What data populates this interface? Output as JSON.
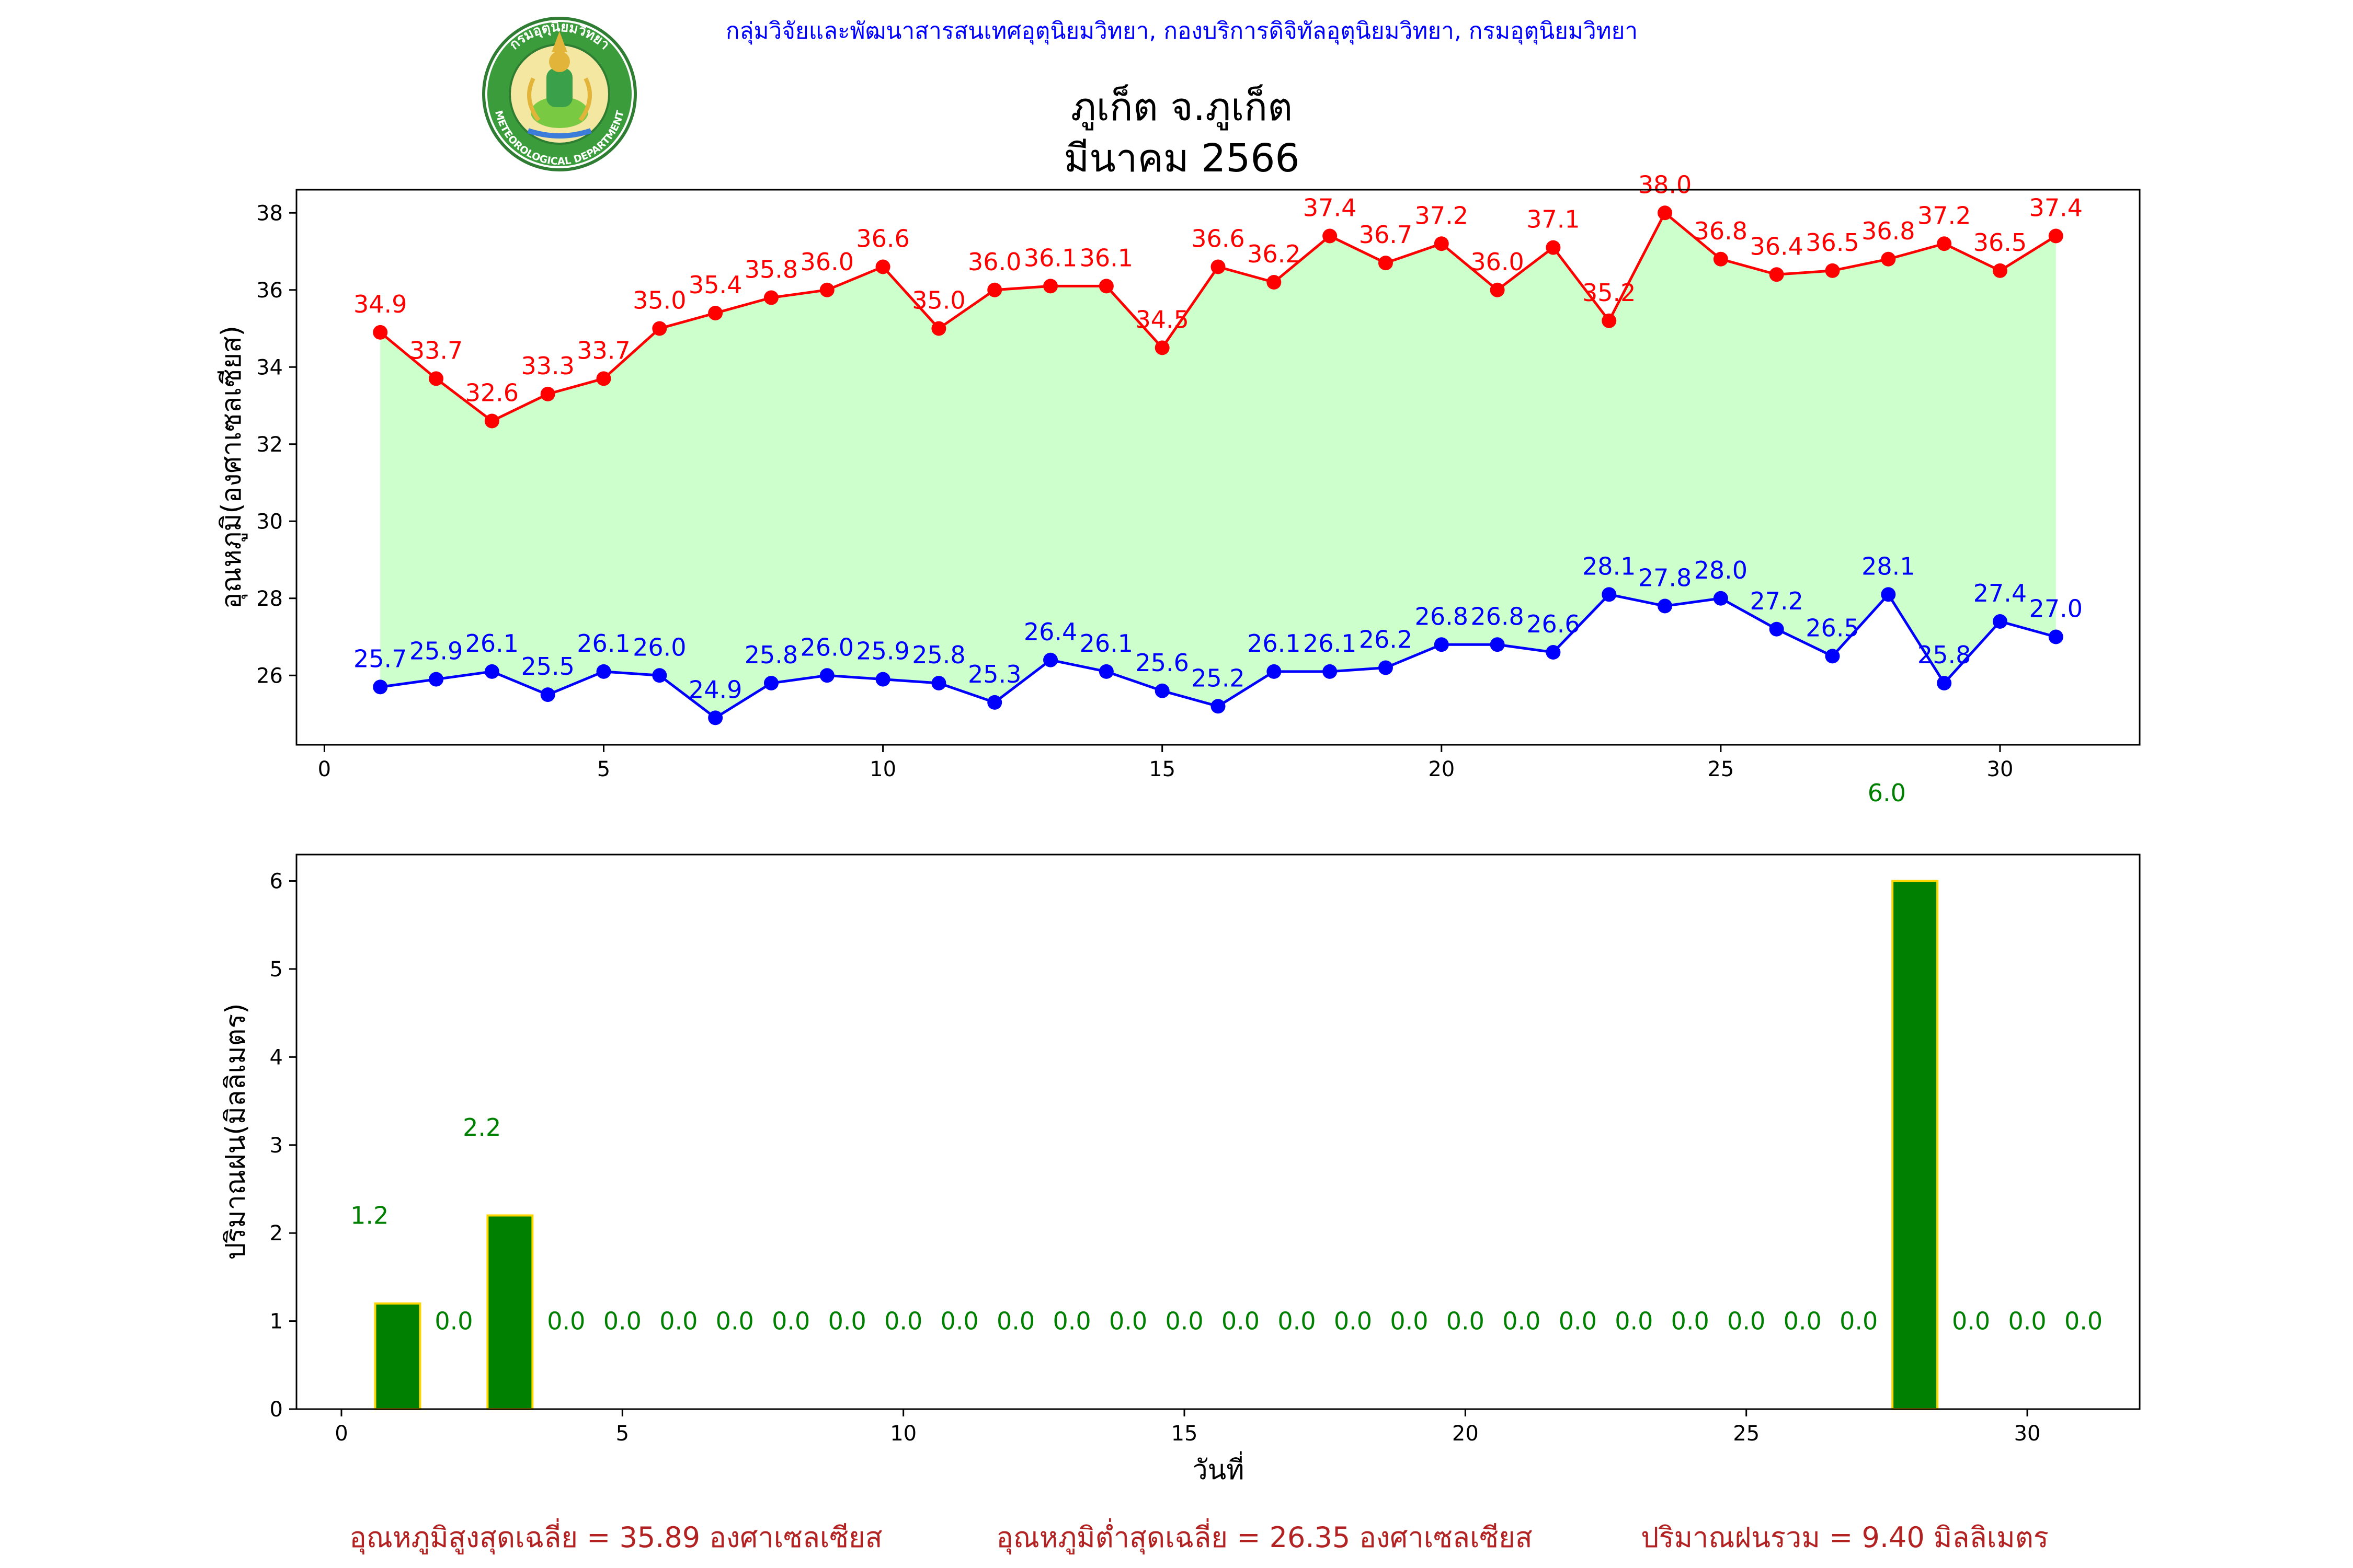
{
  "header": {
    "agency": "กลุ่มวิจัยและพัฒนาสารสนเทศอุตุนิยมวิทยา, กองบริการดิจิทัลอุตุนิยมวิทยา, กรมอุตุนิยมวิทยา",
    "title_line1": "ภูเก็ต จ.ภูเก็ต",
    "title_line2": "มีนาคม 2566",
    "logo_text_top": "กรมอุตุนิยมวิทยา",
    "logo_text_bottom": "METEOROLOGICAL DEPARTMENT"
  },
  "colors": {
    "max_line": "#ff0000",
    "min_line": "#0000ff",
    "fill": "#ccffcc",
    "rain_bar": "#008000",
    "rain_edge": "#ffd700",
    "rain_label": "#008000",
    "summary_text": "#b22222",
    "agency_text": "#0000ff"
  },
  "chart_data": [
    {
      "type": "line",
      "ylabel": "อุณหภูมิ(องศาเซลเซียส)",
      "xlabel": "",
      "xlim": [
        -0.5,
        32.5
      ],
      "ylim": [
        24.2,
        38.6
      ],
      "xticks": [
        0,
        5,
        10,
        15,
        20,
        25,
        30
      ],
      "yticks": [
        26,
        28,
        30,
        32,
        34,
        36,
        38
      ],
      "x": [
        1,
        2,
        3,
        4,
        5,
        6,
        7,
        8,
        9,
        10,
        11,
        12,
        13,
        14,
        15,
        16,
        17,
        18,
        19,
        20,
        21,
        22,
        23,
        24,
        25,
        26,
        27,
        28,
        29,
        30,
        31
      ],
      "series": [
        {
          "key": "max",
          "values": [
            34.9,
            33.7,
            32.6,
            33.3,
            33.7,
            35.0,
            35.4,
            35.8,
            36.0,
            36.6,
            35.0,
            36.0,
            36.1,
            36.1,
            34.5,
            36.6,
            36.2,
            37.4,
            36.7,
            37.2,
            36.0,
            37.1,
            35.2,
            38.0,
            36.8,
            36.4,
            36.5,
            36.8,
            37.2,
            36.5,
            37.4
          ]
        },
        {
          "key": "min",
          "values": [
            25.7,
            25.9,
            26.1,
            25.5,
            26.1,
            26.0,
            24.9,
            25.8,
            26.0,
            25.9,
            25.8,
            25.3,
            26.4,
            26.1,
            25.6,
            25.2,
            26.1,
            26.1,
            26.2,
            26.8,
            26.8,
            26.6,
            28.1,
            27.8,
            28.0,
            27.2,
            26.5,
            28.1,
            25.8,
            27.4,
            27.0
          ]
        }
      ]
    },
    {
      "type": "bar",
      "ylabel": "ปริมาณฝน(มิลลิเมตร)",
      "xlabel": "วันที่",
      "xlim": [
        -0.8,
        32.0
      ],
      "ylim": [
        0,
        6.3
      ],
      "xticks": [
        0,
        5,
        10,
        15,
        20,
        25,
        30
      ],
      "yticks": [
        0,
        1,
        2,
        3,
        4,
        5,
        6
      ],
      "x": [
        1,
        2,
        3,
        4,
        5,
        6,
        7,
        8,
        9,
        10,
        11,
        12,
        13,
        14,
        15,
        16,
        17,
        18,
        19,
        20,
        21,
        22,
        23,
        24,
        25,
        26,
        27,
        28,
        29,
        30,
        31
      ],
      "values": [
        1.2,
        0.0,
        2.2,
        0.0,
        0.0,
        0.0,
        0.0,
        0.0,
        0.0,
        0.0,
        0.0,
        0.0,
        0.0,
        0.0,
        0.0,
        0.0,
        0.0,
        0.0,
        0.0,
        0.0,
        0.0,
        0.0,
        0.0,
        0.0,
        0.0,
        0.0,
        0.0,
        6.0,
        0.0,
        0.0,
        0.0
      ]
    }
  ],
  "summary": {
    "avg_max": "อุณหภูมิสูงสุดเฉลี่ย = 35.89 องศาเซลเซียส",
    "avg_min": "อุณหภูมิต่ำสุดเฉลี่ย = 26.35 องศาเซลเซียส",
    "total_rain": "ปริมาณฝนรวม = 9.40 มิลลิเมตร"
  }
}
